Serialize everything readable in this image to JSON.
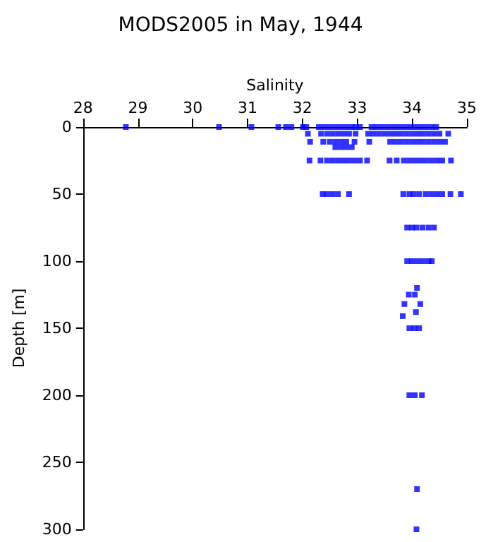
{
  "chart_data": {
    "type": "scatter",
    "title": "MODS2005 in May, 1944",
    "xlabel": "Salinity",
    "ylabel": "Depth [m]",
    "x": [
      28.78,
      30.48,
      31.07,
      31.56,
      31.7,
      31.8,
      32.01,
      32.07,
      32.3,
      32.4,
      32.5,
      32.6,
      32.7,
      32.8,
      32.9,
      32.97,
      33.05,
      33.26,
      33.35,
      33.45,
      33.55,
      33.65,
      33.75,
      33.85,
      33.95,
      34.05,
      34.15,
      34.25,
      34.35,
      34.44,
      32.1,
      32.34,
      32.45,
      32.55,
      32.65,
      32.75,
      32.85,
      32.97,
      33.2,
      33.3,
      33.4,
      33.5,
      33.6,
      33.7,
      33.8,
      33.9,
      34.0,
      34.1,
      34.2,
      34.3,
      34.4,
      34.5,
      34.66,
      32.14,
      32.38,
      32.5,
      32.6,
      32.7,
      32.8,
      32.95,
      33.22,
      33.6,
      33.7,
      33.8,
      33.9,
      34.0,
      34.1,
      34.2,
      34.3,
      34.4,
      34.5,
      34.6,
      32.6,
      32.7,
      32.8,
      32.9,
      32.13,
      32.33,
      32.45,
      32.55,
      32.65,
      32.75,
      32.85,
      32.95,
      33.05,
      33.18,
      33.59,
      33.72,
      33.85,
      33.95,
      34.05,
      34.15,
      34.25,
      34.35,
      34.45,
      34.55,
      34.71,
      32.37,
      32.45,
      32.55,
      32.65,
      32.85,
      33.84,
      33.95,
      34.03,
      34.13,
      34.25,
      34.35,
      34.45,
      34.55,
      34.7,
      34.89,
      33.91,
      34.0,
      34.08,
      34.19,
      34.3,
      34.4,
      33.91,
      34.0,
      34.1,
      34.2,
      34.3,
      34.36,
      34.09,
      33.94,
      34.05,
      33.86,
      34.15,
      34.07,
      33.83,
      33.95,
      34.04,
      34.13,
      33.95,
      34.05,
      34.18,
      34.09,
      34.08
    ],
    "values": [
      0,
      0,
      0,
      0,
      0,
      0,
      0,
      0,
      0,
      0,
      0,
      0,
      0,
      0,
      0,
      0,
      0,
      0,
      0,
      0,
      0,
      0,
      0,
      0,
      0,
      0,
      0,
      0,
      0,
      0,
      5,
      5,
      5,
      5,
      5,
      5,
      5,
      5,
      5,
      5,
      5,
      5,
      5,
      5,
      5,
      5,
      5,
      5,
      5,
      5,
      5,
      5,
      5,
      11,
      11,
      11,
      11,
      11,
      11,
      11,
      11,
      11,
      11,
      11,
      11,
      11,
      11,
      11,
      11,
      11,
      11,
      11,
      15,
      15,
      15,
      15,
      25,
      25,
      25,
      25,
      25,
      25,
      25,
      25,
      25,
      25,
      25,
      25,
      25,
      25,
      25,
      25,
      25,
      25,
      25,
      25,
      25,
      50,
      50,
      50,
      50,
      50,
      50,
      50,
      50,
      50,
      50,
      50,
      50,
      50,
      50,
      50,
      75,
      75,
      75,
      75,
      75,
      75,
      100,
      100,
      100,
      100,
      100,
      100,
      120,
      125,
      125,
      132,
      132,
      138,
      141,
      150,
      150,
      150,
      200,
      200,
      200,
      270,
      300
    ],
    "color": "#0000ff",
    "marker": "square",
    "xlim": [
      28,
      35
    ],
    "xticks": [
      28,
      29,
      30,
      31,
      32,
      33,
      34,
      35
    ],
    "ylim": [
      300,
      0
    ],
    "yticks": [
      0,
      50,
      100,
      150,
      200,
      250,
      300
    ],
    "grid": false
  }
}
